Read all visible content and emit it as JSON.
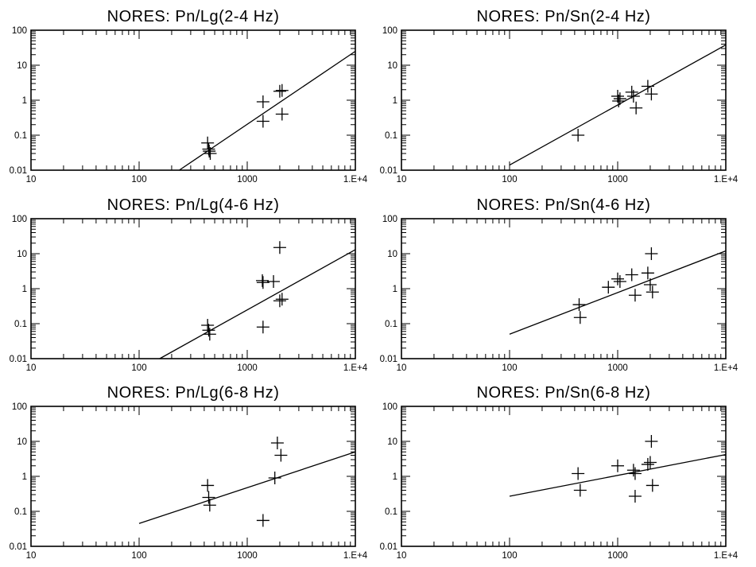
{
  "figure": {
    "background": "#ffffff",
    "ink": "#000000"
  },
  "chart_data": [
    {
      "type": "scatter",
      "title": "NORES: Pn/Lg(2-4 Hz)",
      "xscale": "log",
      "yscale": "log",
      "xlim": [
        10,
        10000
      ],
      "ylim": [
        0.01,
        100
      ],
      "xtick_labels": [
        "10",
        "100",
        "1000",
        "1.E+4"
      ],
      "ytick_labels": [
        "0.01",
        "0.1",
        "1",
        "10",
        "100"
      ],
      "points": [
        {
          "x": 430,
          "y": 0.06
        },
        {
          "x": 440,
          "y": 0.04
        },
        {
          "x": 445,
          "y": 0.035
        },
        {
          "x": 455,
          "y": 0.03
        },
        {
          "x": 1400,
          "y": 0.9
        },
        {
          "x": 1400,
          "y": 0.25
        },
        {
          "x": 2000,
          "y": 1.8
        },
        {
          "x": 2100,
          "y": 1.9
        },
        {
          "x": 2100,
          "y": 0.4
        }
      ],
      "fit_line": {
        "x": [
          235,
          10000
        ],
        "y": [
          0.01,
          25
        ]
      }
    },
    {
      "type": "scatter",
      "title": "NORES: Pn/Sn(2-4 Hz)",
      "xscale": "log",
      "yscale": "log",
      "xlim": [
        10,
        10000
      ],
      "ylim": [
        0.01,
        100
      ],
      "xtick_labels": [
        "10",
        "100",
        "1000",
        "1.E+4"
      ],
      "ytick_labels": [
        "0.01",
        "0.1",
        "1",
        "10",
        "100"
      ],
      "points": [
        {
          "x": 430,
          "y": 0.1
        },
        {
          "x": 1000,
          "y": 1.3
        },
        {
          "x": 1020,
          "y": 0.95
        },
        {
          "x": 1050,
          "y": 1.1
        },
        {
          "x": 1350,
          "y": 1.7
        },
        {
          "x": 1400,
          "y": 1.3
        },
        {
          "x": 1480,
          "y": 0.6
        },
        {
          "x": 1900,
          "y": 2.5
        },
        {
          "x": 2050,
          "y": 1.5
        }
      ],
      "fit_line": {
        "x": [
          100,
          10000
        ],
        "y": [
          0.014,
          38
        ]
      }
    },
    {
      "type": "scatter",
      "title": "NORES: Pn/Lg(4-6 Hz)",
      "xscale": "log",
      "yscale": "log",
      "xlim": [
        10,
        10000
      ],
      "ylim": [
        0.01,
        100
      ],
      "xtick_labels": [
        "10",
        "100",
        "1000",
        "1.E+4"
      ],
      "ytick_labels": [
        "0.01",
        "0.1",
        "1",
        "10",
        "100"
      ],
      "points": [
        {
          "x": 430,
          "y": 0.09
        },
        {
          "x": 440,
          "y": 0.065
        },
        {
          "x": 450,
          "y": 0.05
        },
        {
          "x": 1380,
          "y": 1.7
        },
        {
          "x": 1400,
          "y": 1.5
        },
        {
          "x": 1400,
          "y": 0.08
        },
        {
          "x": 1750,
          "y": 1.6
        },
        {
          "x": 2000,
          "y": 15
        },
        {
          "x": 2000,
          "y": 0.45
        },
        {
          "x": 2100,
          "y": 0.5
        }
      ],
      "fit_line": {
        "x": [
          155,
          10000
        ],
        "y": [
          0.01,
          13
        ]
      }
    },
    {
      "type": "scatter",
      "title": "NORES: Pn/Sn(4-6 Hz)",
      "xscale": "log",
      "yscale": "log",
      "xlim": [
        10,
        10000
      ],
      "ylim": [
        0.01,
        100
      ],
      "xtick_labels": [
        "10",
        "100",
        "1000",
        "1.E+4"
      ],
      "ytick_labels": [
        "0.01",
        "0.1",
        "1",
        "10",
        "100"
      ],
      "points": [
        {
          "x": 440,
          "y": 0.35
        },
        {
          "x": 450,
          "y": 0.15
        },
        {
          "x": 820,
          "y": 1.1
        },
        {
          "x": 1000,
          "y": 1.9
        },
        {
          "x": 1050,
          "y": 1.6
        },
        {
          "x": 1350,
          "y": 2.5
        },
        {
          "x": 1450,
          "y": 0.65
        },
        {
          "x": 1900,
          "y": 2.8
        },
        {
          "x": 2000,
          "y": 1.3
        },
        {
          "x": 2050,
          "y": 10
        },
        {
          "x": 2100,
          "y": 0.8
        }
      ],
      "fit_line": {
        "x": [
          100,
          10000
        ],
        "y": [
          0.05,
          12
        ]
      }
    },
    {
      "type": "scatter",
      "title": "NORES: Pn/Lg(6-8 Hz)",
      "xscale": "log",
      "yscale": "log",
      "xlim": [
        10,
        10000
      ],
      "ylim": [
        0.01,
        100
      ],
      "xtick_labels": [
        "10",
        "100",
        "1000",
        "1.E+4"
      ],
      "ytick_labels": [
        "0.01",
        "0.1",
        "1",
        "10",
        "100"
      ],
      "points": [
        {
          "x": 430,
          "y": 0.55
        },
        {
          "x": 440,
          "y": 0.25
        },
        {
          "x": 450,
          "y": 0.15
        },
        {
          "x": 1400,
          "y": 0.055
        },
        {
          "x": 1800,
          "y": 0.9
        },
        {
          "x": 1900,
          "y": 9
        },
        {
          "x": 2050,
          "y": 4
        }
      ],
      "fit_line": {
        "x": [
          100,
          10000
        ],
        "y": [
          0.045,
          5
        ]
      }
    },
    {
      "type": "scatter",
      "title": "NORES: Pn/Sn(6-8 Hz)",
      "xscale": "log",
      "yscale": "log",
      "xlim": [
        10,
        10000
      ],
      "ylim": [
        0.01,
        100
      ],
      "xtick_labels": [
        "10",
        "100",
        "1000",
        "1.E+4"
      ],
      "ytick_labels": [
        "0.01",
        "0.1",
        "1",
        "10",
        "100"
      ],
      "points": [
        {
          "x": 430,
          "y": 1.2
        },
        {
          "x": 450,
          "y": 0.4
        },
        {
          "x": 1000,
          "y": 2
        },
        {
          "x": 1400,
          "y": 1.5
        },
        {
          "x": 1450,
          "y": 1.2
        },
        {
          "x": 1450,
          "y": 0.27
        },
        {
          "x": 1900,
          "y": 2.2
        },
        {
          "x": 2000,
          "y": 2.5
        },
        {
          "x": 2050,
          "y": 10
        },
        {
          "x": 2100,
          "y": 0.55
        }
      ],
      "fit_line": {
        "x": [
          100,
          10000
        ],
        "y": [
          0.27,
          4.2
        ]
      }
    }
  ]
}
